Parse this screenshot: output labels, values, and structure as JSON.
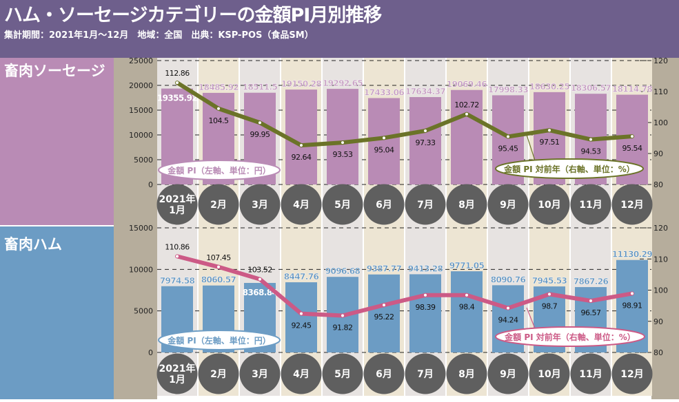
{
  "header": {
    "title": "ハム・ソーセージカテゴリーの金額PI月別推移",
    "subtitle": "集計期間：2021年1月〜12月　地域：全国　出典：KSP-POS（食品SM）"
  },
  "colors": {
    "header_bg": "#6e5f8c",
    "sausage_panel": "#b98bb5",
    "sausage_bar": "#b98bb5",
    "sausage_line": "#6b7328",
    "ham_panel": "#6c9cc4",
    "ham_bar": "#6c9cc4",
    "ham_line": "#cc5a86",
    "axis_strip": "#b6ad9c",
    "month_circle": "#5f5f5f"
  },
  "chart_data": [
    {
      "type": "bar+line",
      "title": "畜肉ソーセージ",
      "categories": [
        "2021年\n1月",
        "2月",
        "3月",
        "4月",
        "5月",
        "6月",
        "7月",
        "8月",
        "9月",
        "10月",
        "11月",
        "12月"
      ],
      "series": [
        {
          "name": "金額 PI（左軸、単位：円）",
          "type": "bar",
          "axis": "left",
          "values": [
            19355.92,
            18485.92,
            18511.5,
            19150.28,
            19292.65,
            17433.06,
            17634.37,
            19069.46,
            17998.33,
            18630.25,
            18306.57,
            18114.78
          ]
        },
        {
          "name": "金額 PI 対前年（右軸、単位：%）",
          "type": "line",
          "axis": "right",
          "values": [
            112.86,
            104.5,
            99.95,
            92.64,
            93.53,
            95.04,
            97.33,
            102.72,
            95.45,
            97.51,
            94.53,
            95.54
          ]
        }
      ],
      "left_axis": {
        "range": [
          0,
          25000
        ],
        "ticks": [
          "0",
          "5000",
          "10000",
          "15000",
          "20000",
          "25000"
        ]
      },
      "right_axis": {
        "range": [
          80,
          120
        ],
        "ticks": [
          "80",
          "90",
          "100",
          "110",
          "120"
        ]
      },
      "grid": true
    },
    {
      "type": "bar+line",
      "title": "畜肉ハム",
      "categories": [
        "2021年\n1月",
        "2月",
        "3月",
        "4月",
        "5月",
        "6月",
        "7月",
        "8月",
        "9月",
        "10月",
        "11月",
        "12月"
      ],
      "series": [
        {
          "name": "金額 PI（左軸、単位：円）",
          "type": "bar",
          "axis": "left",
          "values": [
            7974.58,
            8060.57,
            8368.84,
            8447.76,
            9096.68,
            9387.77,
            9413.28,
            9771.05,
            8090.76,
            7945.53,
            7867.26,
            11130.29
          ]
        },
        {
          "name": "金額 PI 対前年（右軸、単位：%）",
          "type": "line",
          "axis": "right",
          "values": [
            110.86,
            107.45,
            103.52,
            92.45,
            91.82,
            95.22,
            98.39,
            98.4,
            94.24,
            98.7,
            96.57,
            98.91
          ]
        }
      ],
      "left_axis": {
        "range": [
          0,
          15000
        ],
        "ticks": [
          "0",
          "5000",
          "10000",
          "15000"
        ]
      },
      "right_axis": {
        "range": [
          80,
          120
        ],
        "ticks": [
          "80",
          "90",
          "100",
          "110",
          "120"
        ]
      },
      "grid": true
    }
  ]
}
